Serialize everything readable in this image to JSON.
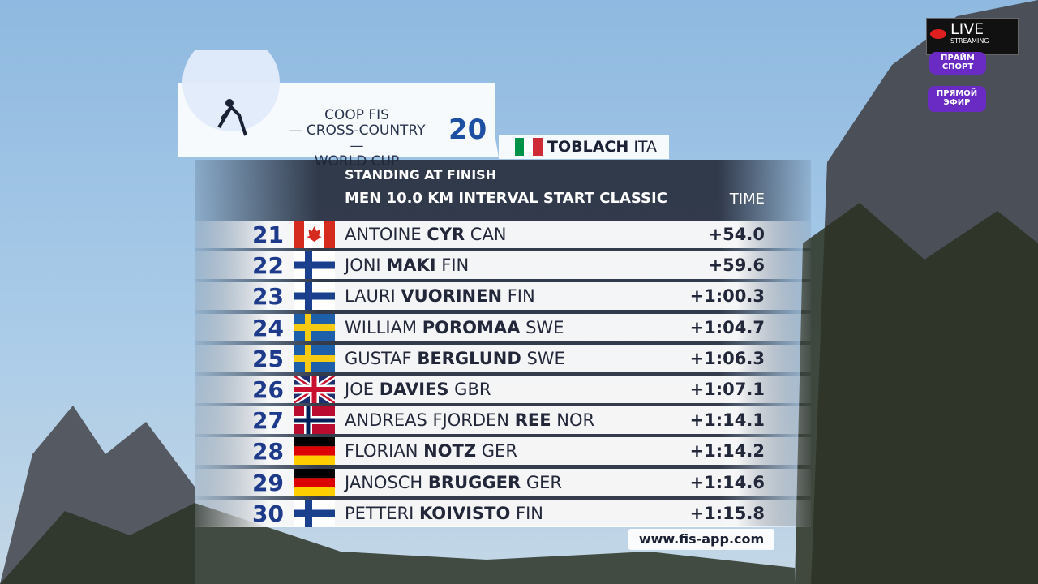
{
  "header": {
    "title": [
      "COOP FIS",
      "— CROSS-COUNTRY —",
      "WORLD CUP"
    ],
    "venue": "TOBLACH",
    "venue_nation": "ITA",
    "status": "STANDING AT FINISH",
    "event": "MEN 10.0 KM INTERVAL START CLASSIC"
  },
  "table": {
    "time_header": "TIME",
    "rows": [
      [
        "21",
        "ANTOINE",
        "CYR",
        "CAN",
        "+54.0"
      ],
      [
        "22",
        "JONI",
        "MAKI",
        "FIN",
        "+59.6"
      ],
      [
        "23",
        "LAURI",
        "VUORINEN",
        "FIN",
        "+1:00.3"
      ],
      [
        "24",
        "WILLIAM",
        "POROMAA",
        "SWE",
        "+1:04.7"
      ],
      [
        "25",
        "GUSTAF",
        "BERGLUND",
        "SWE",
        "+1:06.3"
      ],
      [
        "26",
        "JOE",
        "DAVIES",
        "GBR",
        "+1:07.1"
      ],
      [
        "27",
        "ANDREAS FJORDEN",
        "REE",
        "NOR",
        "+1:14.1"
      ],
      [
        "28",
        "FLORIAN",
        "NOTZ",
        "GER",
        "+1:14.2"
      ],
      [
        "29",
        "JANOSCH",
        "BRUGGER",
        "GER",
        "+1:14.6"
      ],
      [
        "30",
        "PETTERI",
        "KOIVISTO",
        "FIN",
        "+1:15.8"
      ]
    ]
  },
  "footer": {
    "url": "www.fis-app.com"
  },
  "overlay": {
    "live": "LIVE",
    "streaming": "STREAMING",
    "channel": [
      "ПРАЙМ",
      "СПОРТ"
    ],
    "air": [
      "ПРЯМОЙ",
      "ЭФИР"
    ]
  }
}
